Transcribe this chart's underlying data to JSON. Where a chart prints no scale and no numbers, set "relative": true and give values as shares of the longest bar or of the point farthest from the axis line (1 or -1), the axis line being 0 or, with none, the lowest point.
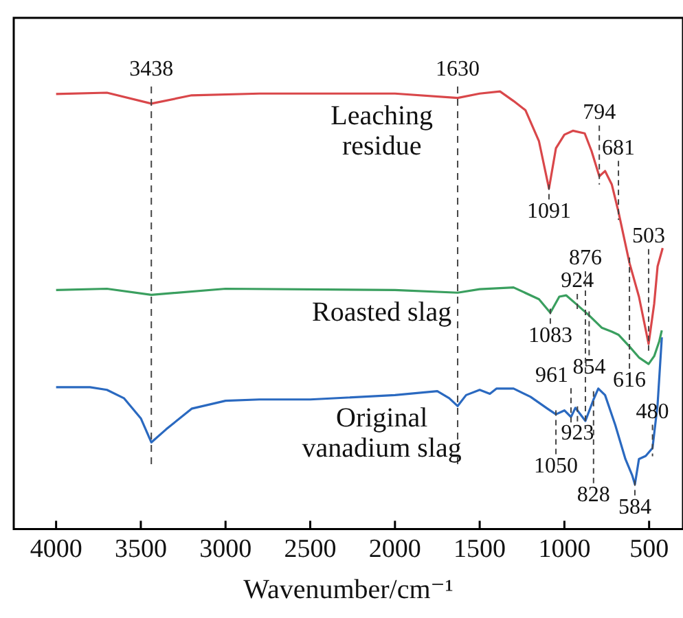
{
  "chart_data": {
    "type": "line",
    "relative": true,
    "xlabel": "Wavenumber/cm⁻¹",
    "xlim": [
      4250,
      300
    ],
    "xticks": [
      4000,
      3500,
      3000,
      2500,
      2000,
      1500,
      1000,
      500
    ],
    "legend": false,
    "marker": "none",
    "line_style": "solid",
    "series": [
      {
        "name": "Leaching residue",
        "color": "#d9474a",
        "x": [
          4000,
          3700,
          3438,
          3200,
          2800,
          2000,
          1630,
          1500,
          1380,
          1300,
          1230,
          1150,
          1091,
          1050,
          1000,
          950,
          880,
          840,
          794,
          760,
          720,
          681,
          616,
          560,
          503,
          470,
          450,
          420
        ],
        "values": [
          0.994,
          0.997,
          0.972,
          0.991,
          0.995,
          0.995,
          0.985,
          0.995,
          1.0,
          0.978,
          0.957,
          0.886,
          0.778,
          0.87,
          0.901,
          0.91,
          0.904,
          0.864,
          0.806,
          0.818,
          0.787,
          0.725,
          0.608,
          0.531,
          0.423,
          0.515,
          0.6,
          0.642
        ]
      },
      {
        "name": "Roasted slag",
        "color": "#3a9f5f",
        "x": [
          4000,
          3700,
          3438,
          3000,
          2000,
          1630,
          1500,
          1300,
          1150,
          1083,
          1030,
          990,
          924,
          854,
          780,
          720,
          681,
          616,
          560,
          503,
          470,
          440,
          425
        ],
        "values": [
          0.546,
          0.549,
          0.535,
          0.549,
          0.546,
          0.54,
          0.548,
          0.552,
          0.525,
          0.494,
          0.531,
          0.534,
          0.512,
          0.488,
          0.46,
          0.451,
          0.444,
          0.417,
          0.392,
          0.377,
          0.395,
          0.429,
          0.454
        ]
      },
      {
        "name": "Original vanadium slag",
        "color": "#2a69c0",
        "x": [
          4000,
          3800,
          3700,
          3600,
          3500,
          3438,
          3350,
          3200,
          3000,
          2800,
          2500,
          2000,
          1750,
          1680,
          1630,
          1580,
          1500,
          1440,
          1400,
          1300,
          1200,
          1100,
          1050,
          1000,
          961,
          935,
          923,
          876,
          828,
          800,
          760,
          700,
          640,
          600,
          584,
          560,
          520,
          480,
          450,
          425
        ],
        "values": [
          0.324,
          0.324,
          0.318,
          0.299,
          0.253,
          0.198,
          0.228,
          0.275,
          0.293,
          0.296,
          0.296,
          0.306,
          0.315,
          0.299,
          0.281,
          0.306,
          0.318,
          0.309,
          0.321,
          0.321,
          0.302,
          0.275,
          0.262,
          0.271,
          0.256,
          0.277,
          0.271,
          0.247,
          0.296,
          0.321,
          0.306,
          0.238,
          0.16,
          0.123,
          0.102,
          0.16,
          0.167,
          0.185,
          0.284,
          0.438
        ]
      }
    ],
    "ref_lines": [
      {
        "axis": "x",
        "value": 3438,
        "label": "3438",
        "line_style": "dashed"
      },
      {
        "axis": "x",
        "value": 1630,
        "label": "1630",
        "line_style": "dashed"
      }
    ],
    "annotations": [
      {
        "text": "1091",
        "x": 1091,
        "y": 0.778
      },
      {
        "text": "794",
        "x": 794,
        "y": 0.806
      },
      {
        "text": "681",
        "x": 681,
        "y": 0.725
      },
      {
        "text": "616",
        "x": 616,
        "y": 0.608
      },
      {
        "text": "503",
        "x": 503,
        "y": 0.423
      },
      {
        "text": "1083",
        "x": 1083,
        "y": 0.494
      },
      {
        "text": "924",
        "x": 924,
        "y": 0.512
      },
      {
        "text": "854",
        "x": 854,
        "y": 0.488
      },
      {
        "text": "923",
        "x": 923,
        "y": 0.271
      },
      {
        "text": "1050",
        "x": 1050,
        "y": 0.262
      },
      {
        "text": "828",
        "x": 828,
        "y": 0.296
      },
      {
        "text": "876",
        "x": 876,
        "y": 0.247
      },
      {
        "text": "961",
        "x": 961,
        "y": 0.256
      },
      {
        "text": "584",
        "x": 584,
        "y": 0.102
      },
      {
        "text": "480",
        "x": 480,
        "y": 0.185
      }
    ]
  }
}
